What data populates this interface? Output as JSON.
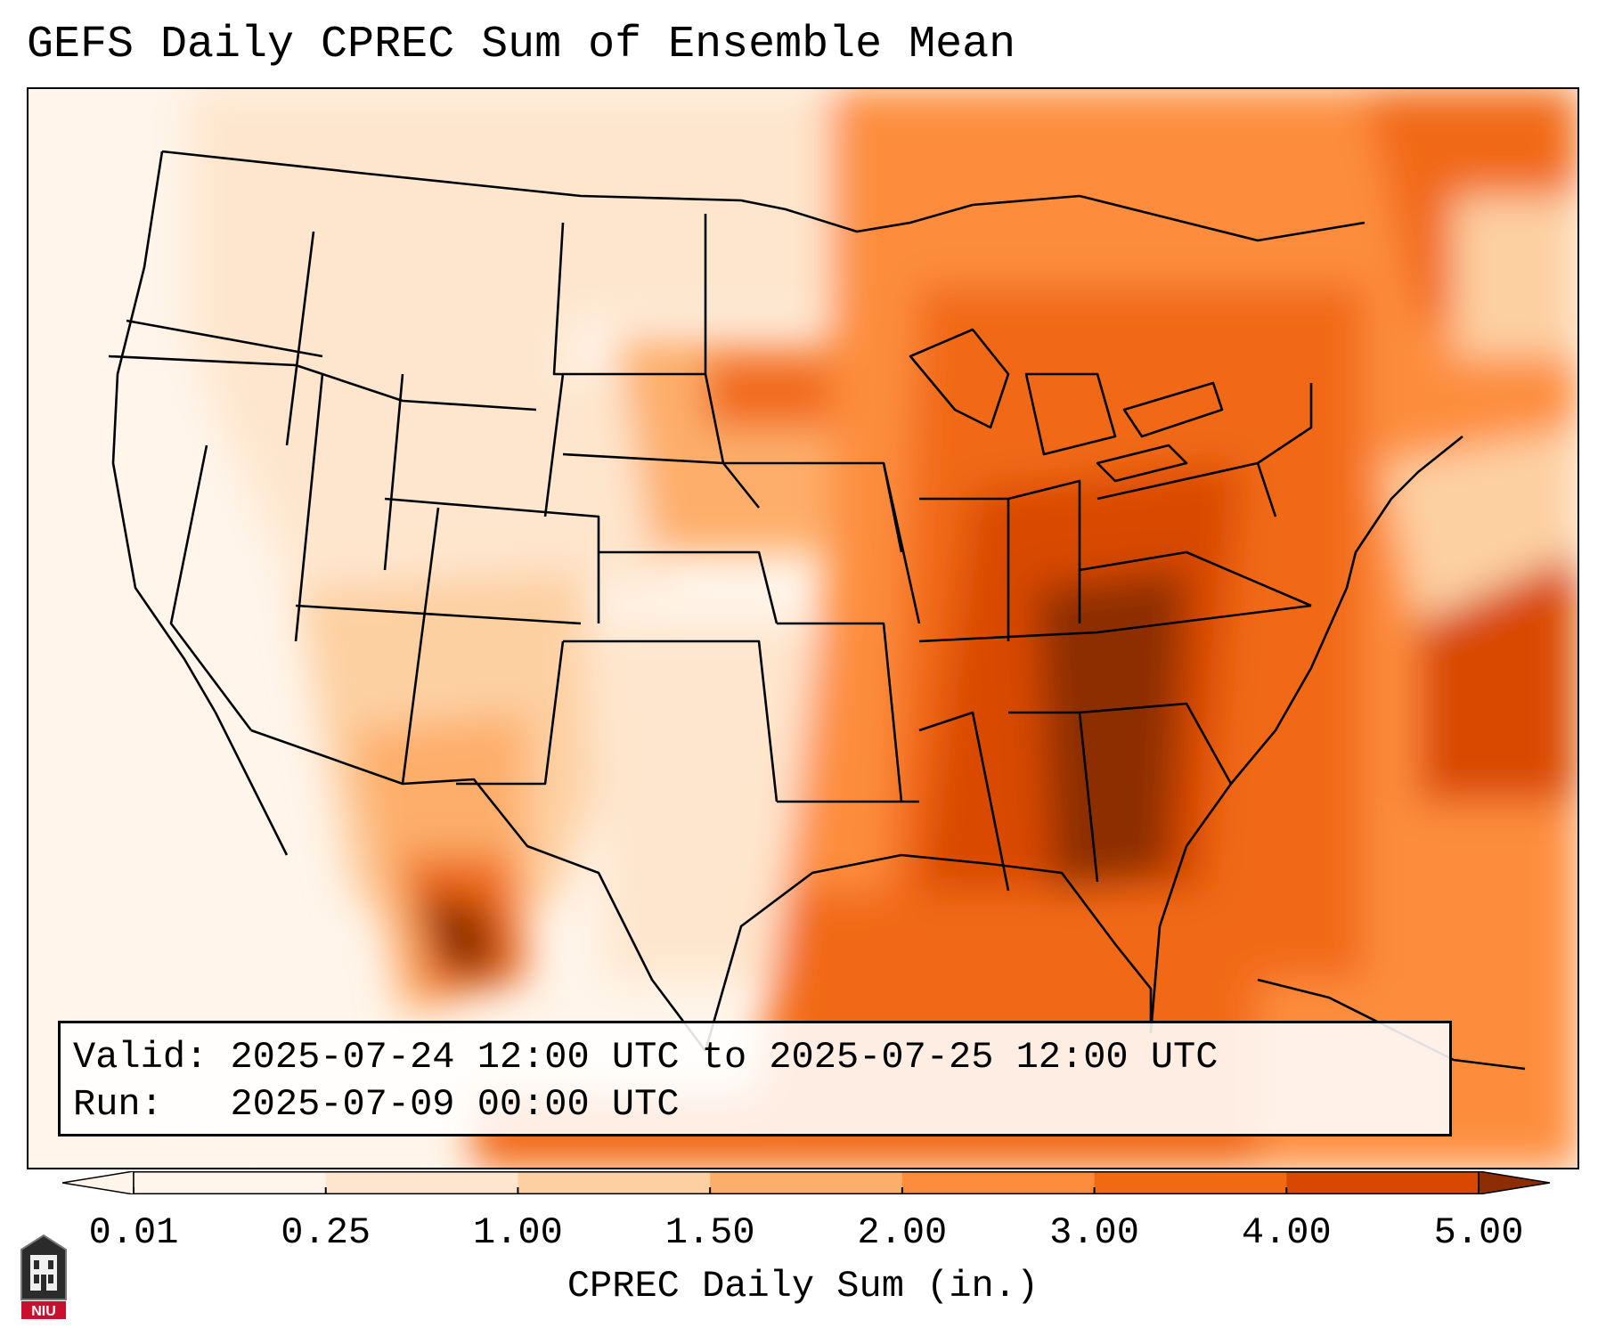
{
  "title": "GEFS Daily CPREC Sum of Ensemble Mean",
  "info": {
    "valid_label": "Valid:",
    "valid_value": "2025-07-24 12:00 UTC to 2025-07-25 12:00 UTC",
    "run_label": "Run:",
    "run_value": "2025-07-09 00:00 UTC"
  },
  "colorbar": {
    "label": "CPREC Daily Sum (in.)",
    "ticks": [
      "0.01",
      "0.25",
      "1.00",
      "1.50",
      "2.00",
      "3.00",
      "4.00",
      "5.00"
    ],
    "colors": [
      "#fff5eb",
      "#fee6ce",
      "#fdd0a2",
      "#fdae6b",
      "#fd8d3c",
      "#f16913",
      "#d94801",
      "#8c2d04"
    ],
    "extend": "both"
  },
  "logo": {
    "text": "NIU",
    "icon": "university-logo-icon"
  }
}
